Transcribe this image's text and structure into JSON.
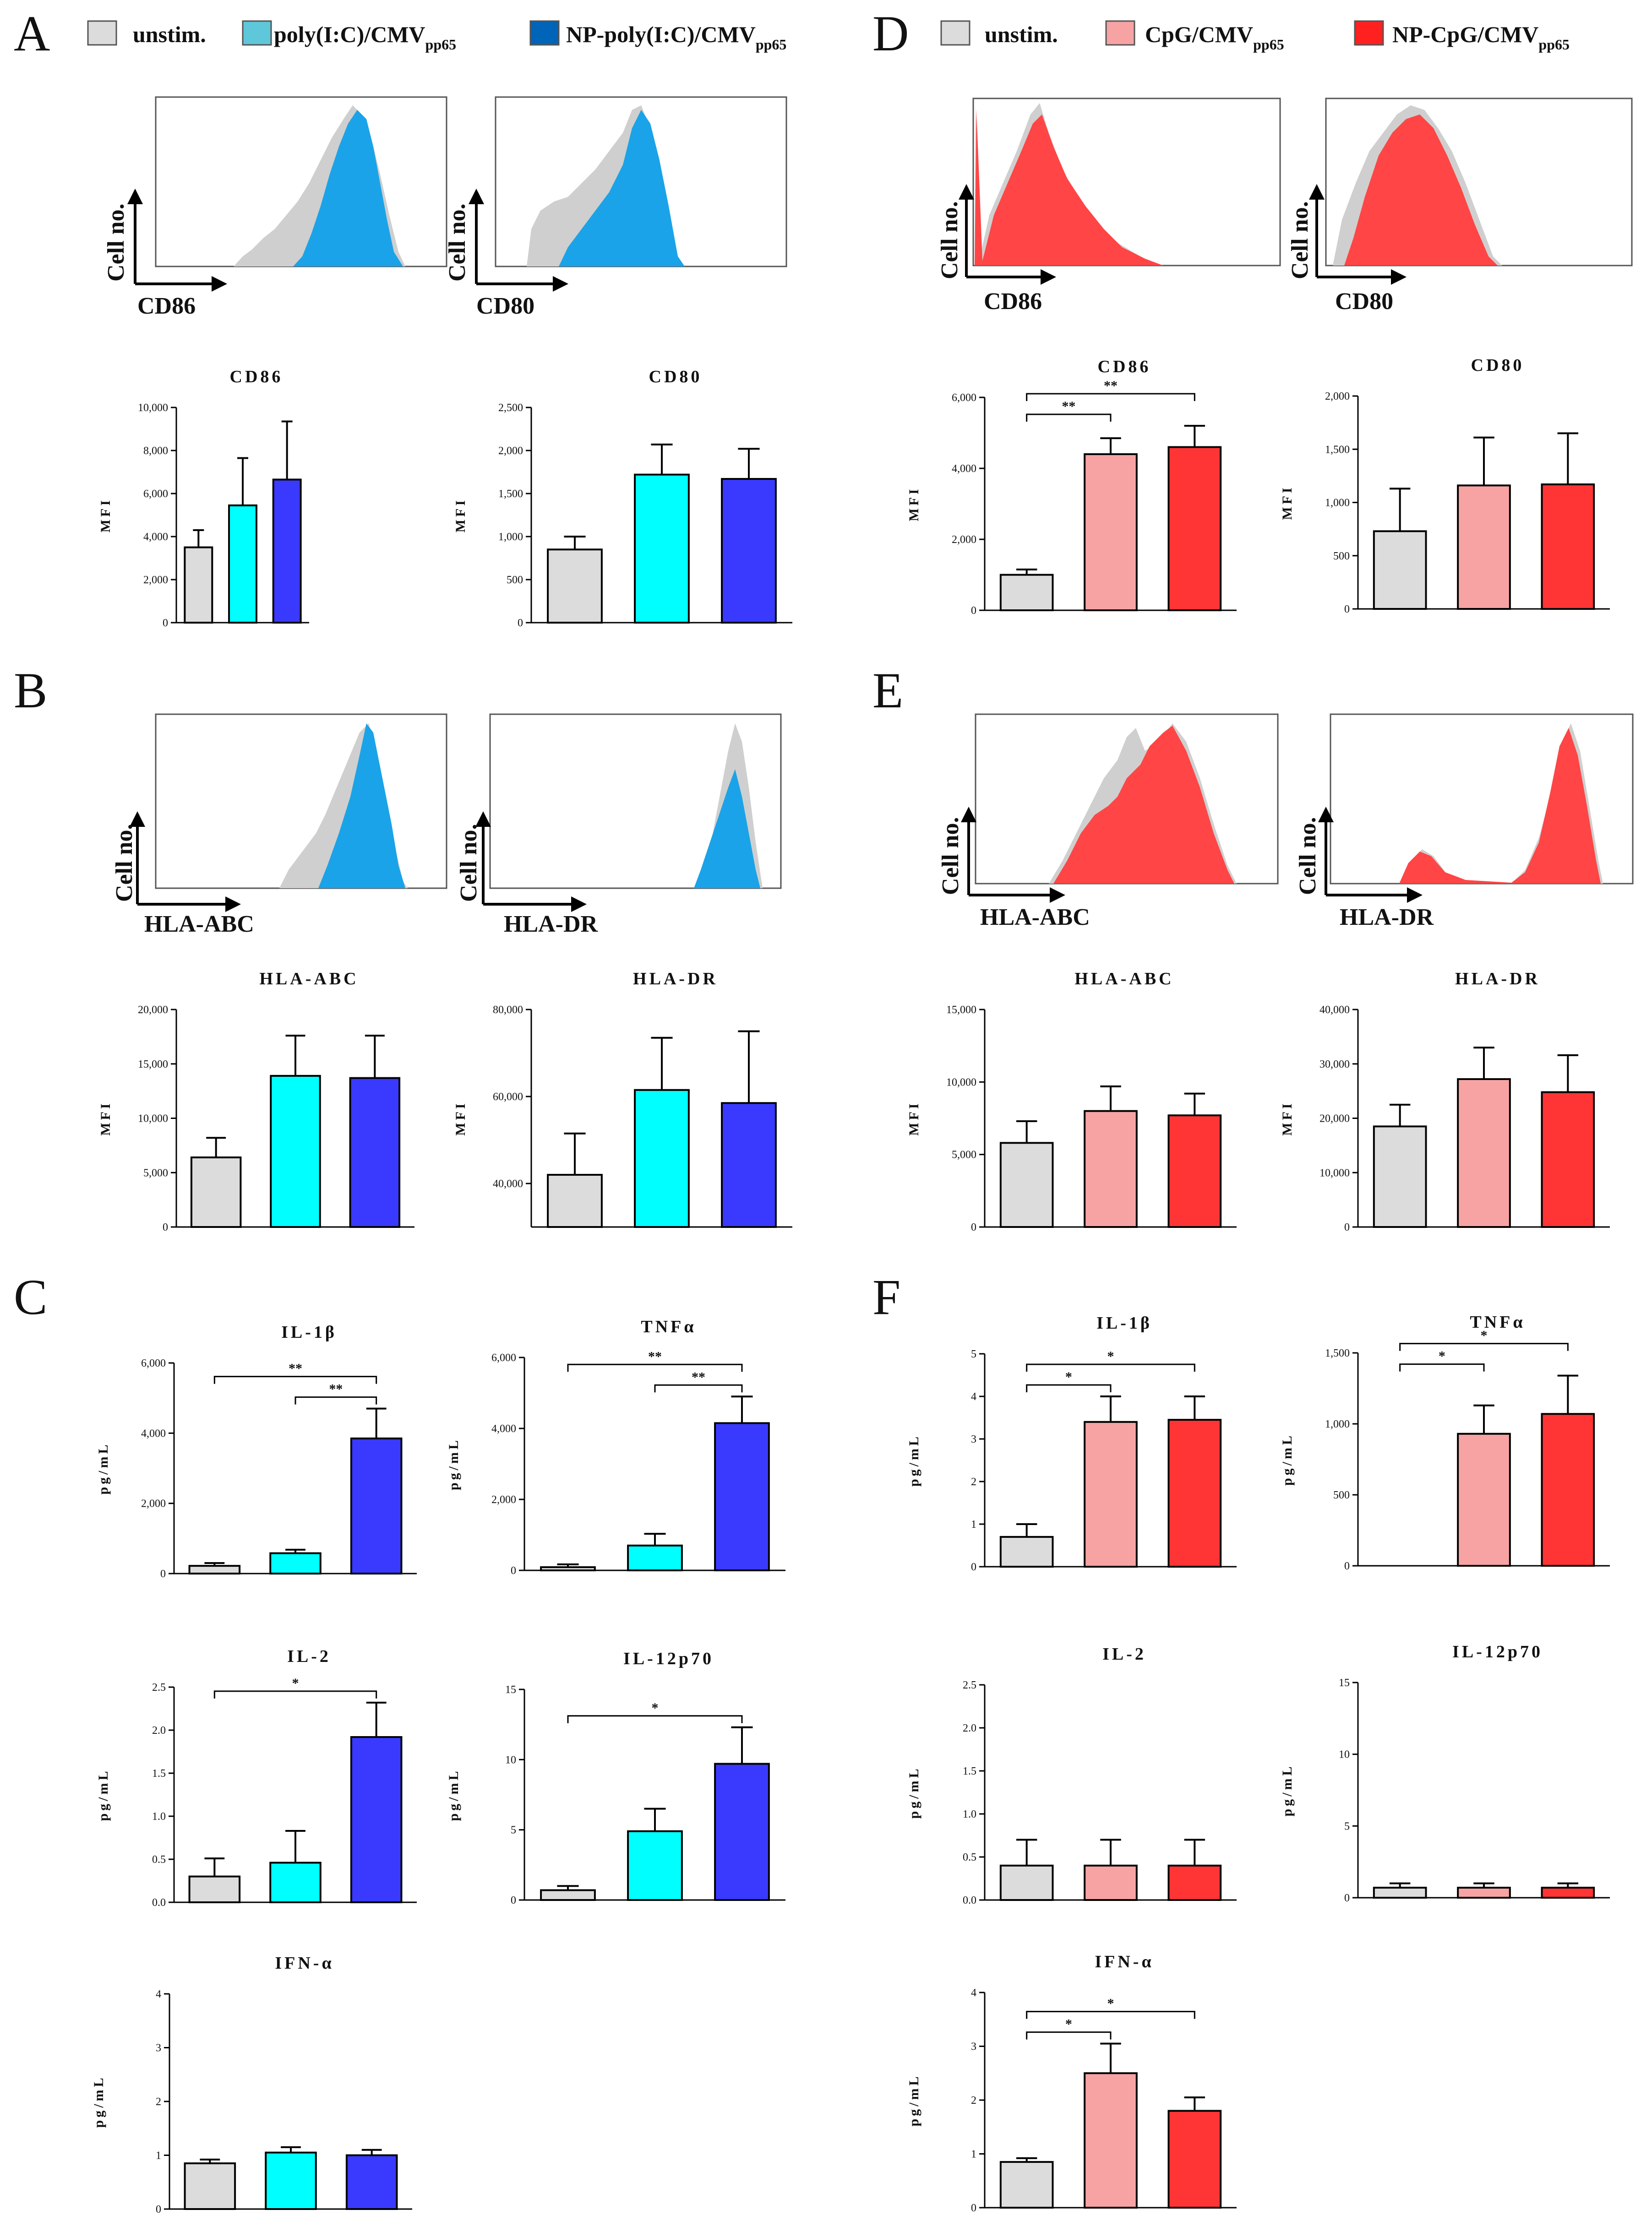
{
  "panel_letters": {
    "A": "A",
    "B": "B",
    "C": "C",
    "D": "D",
    "E": "E",
    "F": "F"
  },
  "colors": {
    "unstim": "#dcdcdc",
    "poly": "#00ffff",
    "np_poly": "#3a3aff",
    "cpg": "#f7a3a3",
    "np_cpg": "#ff3535",
    "hist_blue": "#1aa3e8",
    "hist_blue_legend": "#0064b8",
    "hist_poly_legend": "#5ec7d9",
    "hist_red": "#ff4545",
    "hist_grey": "#cfcfcf"
  },
  "legend_left": {
    "items": [
      {
        "text": "unstim.",
        "sub": ""
      },
      {
        "text": "poly(I:C)/CMV",
        "sub": "pp65"
      },
      {
        "text": "NP-poly(I:C)/CMV",
        "sub": "pp65"
      }
    ]
  },
  "legend_right": {
    "items": [
      {
        "text": "unstim.",
        "sub": ""
      },
      {
        "text": "CpG/CMV",
        "sub": "pp65"
      },
      {
        "text": "NP-CpG/CMV",
        "sub": "pp65"
      }
    ]
  },
  "histograms": {
    "y_label": "Cell no.",
    "A_left_x": "CD86",
    "A_right_x": "CD80",
    "B_left_x": "HLA-ABC",
    "B_right_x": "HLA-DR",
    "D_left_x": "CD86",
    "D_right_x": "CD80",
    "E_left_x": "HLA-ABC",
    "E_right_x": "HLA-DR"
  },
  "chart_data": [
    {
      "id": "A1",
      "type": "bar",
      "title": "CD86",
      "ylabel": "MFI",
      "ylim": [
        0,
        10000
      ],
      "ticks": [
        "0",
        "2,000",
        "4,000",
        "6,000",
        "8,000",
        "10,000"
      ],
      "tick_values": [
        0,
        2000,
        4000,
        6000,
        8000,
        10000
      ],
      "categories": [
        "unstim.",
        "poly(I:C)/CMVpp65",
        "NP-poly(I:C)/CMVpp65"
      ],
      "values": [
        3500,
        5450,
        6650
      ],
      "errors": [
        800,
        2200,
        2700
      ],
      "sig": []
    },
    {
      "id": "A2",
      "type": "bar",
      "title": "CD80",
      "ylabel": "MFI",
      "ylim": [
        0,
        2500
      ],
      "ticks": [
        "0",
        "500",
        "1,000",
        "1,500",
        "2,000",
        "2,500"
      ],
      "tick_values": [
        0,
        500,
        1000,
        1500,
        2000,
        2500
      ],
      "categories": [
        "unstim.",
        "poly(I:C)/CMVpp65",
        "NP-poly(I:C)/CMVpp65"
      ],
      "values": [
        850,
        1720,
        1670
      ],
      "errors": [
        150,
        350,
        350
      ],
      "sig": []
    },
    {
      "id": "B1",
      "type": "bar",
      "title": "HLA-ABC",
      "ylabel": "MFI",
      "ylim": [
        0,
        20000
      ],
      "ticks": [
        "0",
        "5,000",
        "10,000",
        "15,000",
        "20,000"
      ],
      "tick_values": [
        0,
        5000,
        10000,
        15000,
        20000
      ],
      "categories": [
        "unstim.",
        "poly(I:C)/CMVpp65",
        "NP-poly(I:C)/CMVpp65"
      ],
      "values": [
        6400,
        13900,
        13700
      ],
      "errors": [
        1800,
        3700,
        3900
      ],
      "sig": []
    },
    {
      "id": "B2",
      "type": "bar",
      "title": "HLA-DR",
      "ylabel": "MFI",
      "ylim": [
        30000,
        80000
      ],
      "ticks": [
        "40,000",
        "60,000",
        "80,000"
      ],
      "tick_values": [
        40000,
        60000,
        80000
      ],
      "categories": [
        "unstim.",
        "poly(I:C)/CMVpp65",
        "NP-poly(I:C)/CMVpp65"
      ],
      "values": [
        42000,
        61500,
        58500
      ],
      "errors": [
        9500,
        12000,
        16500
      ],
      "sig": []
    },
    {
      "id": "C1",
      "type": "bar",
      "title": "IL-1β",
      "ylabel": "pg/mL",
      "ylim": [
        0,
        6000
      ],
      "ticks": [
        "0",
        "2,000",
        "4,000",
        "6,000"
      ],
      "tick_values": [
        0,
        2000,
        4000,
        6000
      ],
      "categories": [
        "unstim.",
        "poly(I:C)/CMVpp65",
        "NP-poly(I:C)/CMVpp65"
      ],
      "values": [
        220,
        580,
        3850
      ],
      "errors": [
        80,
        100,
        850
      ],
      "sig": [
        {
          "from": 0,
          "to": 2,
          "label": "**"
        },
        {
          "from": 1,
          "to": 2,
          "label": "**"
        }
      ]
    },
    {
      "id": "C2",
      "type": "bar",
      "title": "TNFα",
      "ylabel": "pg/mL",
      "ylim": [
        0,
        6000
      ],
      "ticks": [
        "0",
        "2,000",
        "4,000",
        "6,000"
      ],
      "tick_values": [
        0,
        2000,
        4000,
        6000
      ],
      "categories": [
        "unstim.",
        "poly(I:C)/CMVpp65",
        "NP-poly(I:C)/CMVpp65"
      ],
      "values": [
        90,
        700,
        4150
      ],
      "errors": [
        80,
        330,
        750
      ],
      "sig": [
        {
          "from": 0,
          "to": 2,
          "label": "**"
        },
        {
          "from": 1,
          "to": 2,
          "label": "**"
        }
      ]
    },
    {
      "id": "C3",
      "type": "bar",
      "title": "IL-2",
      "ylabel": "pg/mL",
      "ylim": [
        0,
        2.5
      ],
      "ticks": [
        "0.0",
        "0.5",
        "1.0",
        "1.5",
        "2.0",
        "2.5"
      ],
      "tick_values": [
        0,
        0.5,
        1,
        1.5,
        2,
        2.5
      ],
      "categories": [
        "unstim.",
        "poly(I:C)/CMVpp65",
        "NP-poly(I:C)/CMVpp65"
      ],
      "values": [
        0.3,
        0.46,
        1.92
      ],
      "errors": [
        0.21,
        0.37,
        0.4
      ],
      "sig": [
        {
          "from": 0,
          "to": 2,
          "label": "*"
        }
      ]
    },
    {
      "id": "C4",
      "type": "bar",
      "title": "IL-12p70",
      "ylabel": "pg/mL",
      "ylim": [
        0,
        15
      ],
      "ticks": [
        "0",
        "5",
        "10",
        "15"
      ],
      "tick_values": [
        0,
        5,
        10,
        15
      ],
      "categories": [
        "unstim.",
        "poly(I:C)/CMVpp65",
        "NP-poly(I:C)/CMVpp65"
      ],
      "values": [
        0.7,
        4.9,
        9.7
      ],
      "errors": [
        0.3,
        1.6,
        2.6
      ],
      "sig": [
        {
          "from": 0,
          "to": 2,
          "label": "*"
        }
      ]
    },
    {
      "id": "C5",
      "type": "bar",
      "title": "IFN-α",
      "ylabel": "pg/mL",
      "ylim": [
        0,
        4
      ],
      "ticks": [
        "0",
        "1",
        "2",
        "3",
        "4"
      ],
      "tick_values": [
        0,
        1,
        2,
        3,
        4
      ],
      "categories": [
        "unstim.",
        "poly(I:C)/CMVpp65",
        "NP-poly(I:C)/CMVpp65"
      ],
      "values": [
        0.85,
        1.05,
        1.0
      ],
      "errors": [
        0.07,
        0.1,
        0.1
      ],
      "sig": []
    },
    {
      "id": "D1",
      "type": "bar",
      "title": "CD86",
      "ylabel": "MFI",
      "ylim": [
        0,
        6000
      ],
      "ticks": [
        "0",
        "2,000",
        "4,000",
        "6,000"
      ],
      "tick_values": [
        0,
        2000,
        4000,
        6000
      ],
      "categories": [
        "unstim.",
        "CpG/CMVpp65",
        "NP-CpG/CMVpp65"
      ],
      "values": [
        1000,
        4400,
        4600
      ],
      "errors": [
        150,
        450,
        600
      ],
      "sig": [
        {
          "from": 0,
          "to": 1,
          "label": "**"
        },
        {
          "from": 0,
          "to": 2,
          "label": "**"
        }
      ]
    },
    {
      "id": "D2",
      "type": "bar",
      "title": "CD80",
      "ylabel": "MFI",
      "ylim": [
        0,
        2000
      ],
      "ticks": [
        "0",
        "500",
        "1,000",
        "1,500",
        "2,000"
      ],
      "tick_values": [
        0,
        500,
        1000,
        1500,
        2000
      ],
      "categories": [
        "unstim.",
        "CpG/CMVpp65",
        "NP-CpG/CMVpp65"
      ],
      "values": [
        730,
        1160,
        1170
      ],
      "errors": [
        400,
        450,
        480
      ],
      "sig": []
    },
    {
      "id": "E1",
      "type": "bar",
      "title": "HLA-ABC",
      "ylabel": "MFI",
      "ylim": [
        0,
        15000
      ],
      "ticks": [
        "0",
        "5,000",
        "10,000",
        "15,000"
      ],
      "tick_values": [
        0,
        5000,
        10000,
        15000
      ],
      "categories": [
        "unstim.",
        "CpG/CMVpp65",
        "NP-CpG/CMVpp65"
      ],
      "values": [
        5800,
        8000,
        7700
      ],
      "errors": [
        1500,
        1700,
        1500
      ],
      "sig": []
    },
    {
      "id": "E2",
      "type": "bar",
      "title": "HLA-DR",
      "ylabel": "MFI",
      "ylim": [
        0,
        40000
      ],
      "ticks": [
        "0",
        "10,000",
        "20,000",
        "30,000",
        "40,000"
      ],
      "tick_values": [
        0,
        10000,
        20000,
        30000,
        40000
      ],
      "categories": [
        "unstim.",
        "CpG/CMVpp65",
        "NP-CpG/CMVpp65"
      ],
      "values": [
        18500,
        27200,
        24800
      ],
      "errors": [
        4000,
        5800,
        6800
      ],
      "sig": []
    },
    {
      "id": "F1",
      "type": "bar",
      "title": "IL-1β",
      "ylabel": "pg/mL",
      "ylim": [
        0,
        5
      ],
      "ticks": [
        "0",
        "1",
        "2",
        "3",
        "4",
        "5"
      ],
      "tick_values": [
        0,
        1,
        2,
        3,
        4,
        5
      ],
      "categories": [
        "unstim.",
        "CpG/CMVpp65",
        "NP-CpG/CMVpp65"
      ],
      "values": [
        0.7,
        3.4,
        3.45
      ],
      "errors": [
        0.3,
        0.6,
        0.55
      ],
      "sig": [
        {
          "from": 0,
          "to": 1,
          "label": "*"
        },
        {
          "from": 0,
          "to": 2,
          "label": "*"
        }
      ]
    },
    {
      "id": "F2",
      "type": "bar",
      "title": "TNFα",
      "ylabel": "pg/mL",
      "ylim": [
        0,
        1500
      ],
      "ticks": [
        "0",
        "500",
        "1,000",
        "1,500"
      ],
      "tick_values": [
        0,
        500,
        1000,
        1500
      ],
      "categories": [
        "unstim.",
        "CpG/CMVpp65",
        "NP-CpG/CMVpp65"
      ],
      "values": [
        0,
        930,
        1070
      ],
      "errors": [
        0,
        200,
        270
      ],
      "sig": [
        {
          "from": 0,
          "to": 1,
          "label": "*"
        },
        {
          "from": 0,
          "to": 2,
          "label": "*"
        }
      ]
    },
    {
      "id": "F3",
      "type": "bar",
      "title": "IL-2",
      "ylabel": "pg/mL",
      "ylim": [
        0,
        2.5
      ],
      "ticks": [
        "0.0",
        "0.5",
        "1.0",
        "1.5",
        "2.0",
        "2.5"
      ],
      "tick_values": [
        0,
        0.5,
        1,
        1.5,
        2,
        2.5
      ],
      "categories": [
        "unstim.",
        "CpG/CMVpp65",
        "NP-CpG/CMVpp65"
      ],
      "values": [
        0.4,
        0.4,
        0.4
      ],
      "errors": [
        0.3,
        0.3,
        0.3
      ],
      "sig": []
    },
    {
      "id": "F4",
      "type": "bar",
      "title": "IL-12p70",
      "ylabel": "pg/mL",
      "ylim": [
        0,
        15
      ],
      "ticks": [
        "0",
        "5",
        "10",
        "15"
      ],
      "tick_values": [
        0,
        5,
        10,
        15
      ],
      "categories": [
        "unstim.",
        "CpG/CMVpp65",
        "NP-CpG/CMVpp65"
      ],
      "values": [
        0.7,
        0.7,
        0.7
      ],
      "errors": [
        0.3,
        0.3,
        0.3
      ],
      "sig": []
    },
    {
      "id": "F5",
      "type": "bar",
      "title": "IFN-α",
      "ylabel": "pg/mL",
      "ylim": [
        0,
        4
      ],
      "ticks": [
        "0",
        "1",
        "2",
        "3",
        "4"
      ],
      "tick_values": [
        0,
        1,
        2,
        3,
        4
      ],
      "categories": [
        "unstim.",
        "CpG/CMVpp65",
        "NP-CpG/CMVpp65"
      ],
      "values": [
        0.85,
        2.5,
        1.8
      ],
      "errors": [
        0.07,
        0.55,
        0.25
      ],
      "sig": [
        {
          "from": 0,
          "to": 1,
          "label": "*"
        },
        {
          "from": 0,
          "to": 2,
          "label": "*"
        }
      ]
    }
  ]
}
